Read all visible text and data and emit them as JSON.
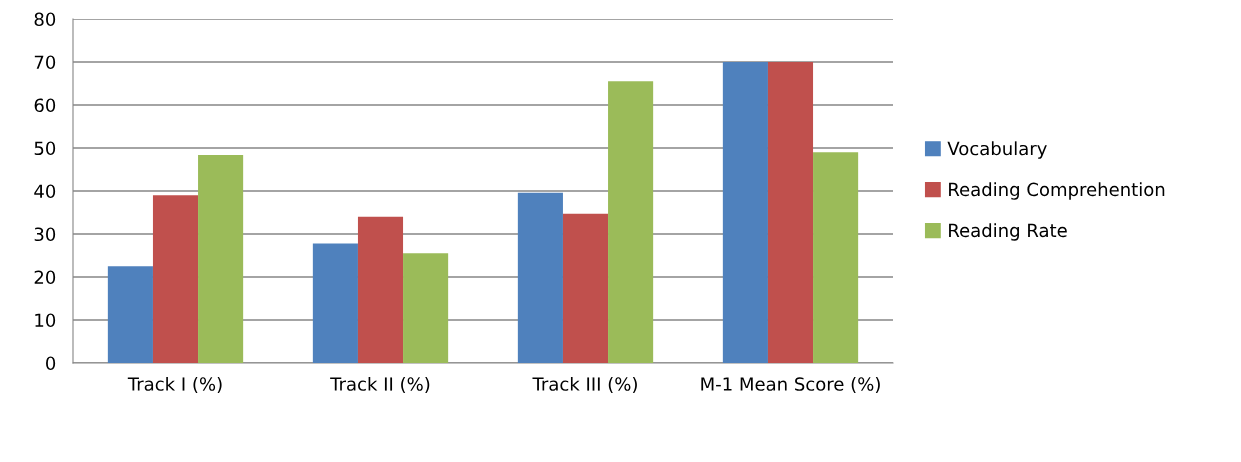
{
  "chart_data": {
    "type": "bar",
    "categories": [
      "Track I (%)",
      "Track II (%)",
      "Track III (%)",
      "M-1 Mean Score (%)"
    ],
    "series": [
      {
        "name": "Vocabulary",
        "color": "#4f81bd",
        "values": [
          22.5,
          27.8,
          39.6,
          70
        ]
      },
      {
        "name": "Reading Comprehention",
        "color": "#c0504d",
        "values": [
          39.0,
          34.0,
          34.7,
          70
        ]
      },
      {
        "name": "Reading Rate",
        "color": "#9bbb59",
        "values": [
          48.4,
          25.5,
          65.5,
          49.0
        ]
      }
    ],
    "ylim": [
      0,
      80
    ],
    "yticks": [
      0,
      10,
      20,
      30,
      40,
      50,
      60,
      70,
      80
    ],
    "grid": "y",
    "legend": "right"
  }
}
